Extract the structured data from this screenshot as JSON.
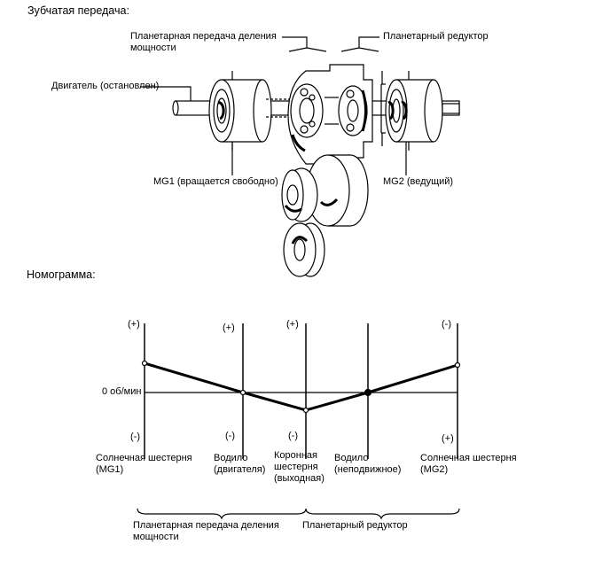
{
  "gear_section": {
    "title": "Зубчатая передача:",
    "labels": {
      "power_split_line1": "Планетарная передача деления",
      "power_split_line2": "мощности",
      "reduction": "Планетарный редуктор",
      "engine": "Двигатель (остановлен)",
      "mg1": "MG1 (вращается свободно)",
      "mg2": "MG2 (ведущий)"
    }
  },
  "nomogram": {
    "title": "Номограмма:",
    "zero_label": "0 об/мин",
    "axes": [
      {
        "top_sign": "(+)",
        "bottom_sign": "(-)",
        "label_lines": [
          "Солнечная шестерня",
          "(MG1)"
        ],
        "value": "positive",
        "marker": "open"
      },
      {
        "top_sign": "(+)",
        "bottom_sign": "(-)",
        "label_lines": [
          "Водило",
          "(двигателя)"
        ],
        "value": "zero",
        "marker": "open"
      },
      {
        "top_sign": "(+)",
        "bottom_sign": "(-)",
        "label_lines": [
          "Коронная",
          "шестерня",
          "(выходная)"
        ],
        "value": "negative",
        "marker": "open"
      },
      {
        "top_sign": "",
        "bottom_sign": "",
        "label_lines": [
          "Водило",
          "(неподвижное)"
        ],
        "value": "zero",
        "marker": "filled"
      },
      {
        "top_sign": "(-)",
        "bottom_sign": "(+)",
        "label_lines": [
          "Солнечная шестерня",
          "(MG2)"
        ],
        "value": "positive",
        "marker": "open"
      }
    ],
    "groups": {
      "power_split_line1": "Планетарная передача деления",
      "power_split_line2": "мощности",
      "reduction": "Планетарный редуктор"
    }
  }
}
